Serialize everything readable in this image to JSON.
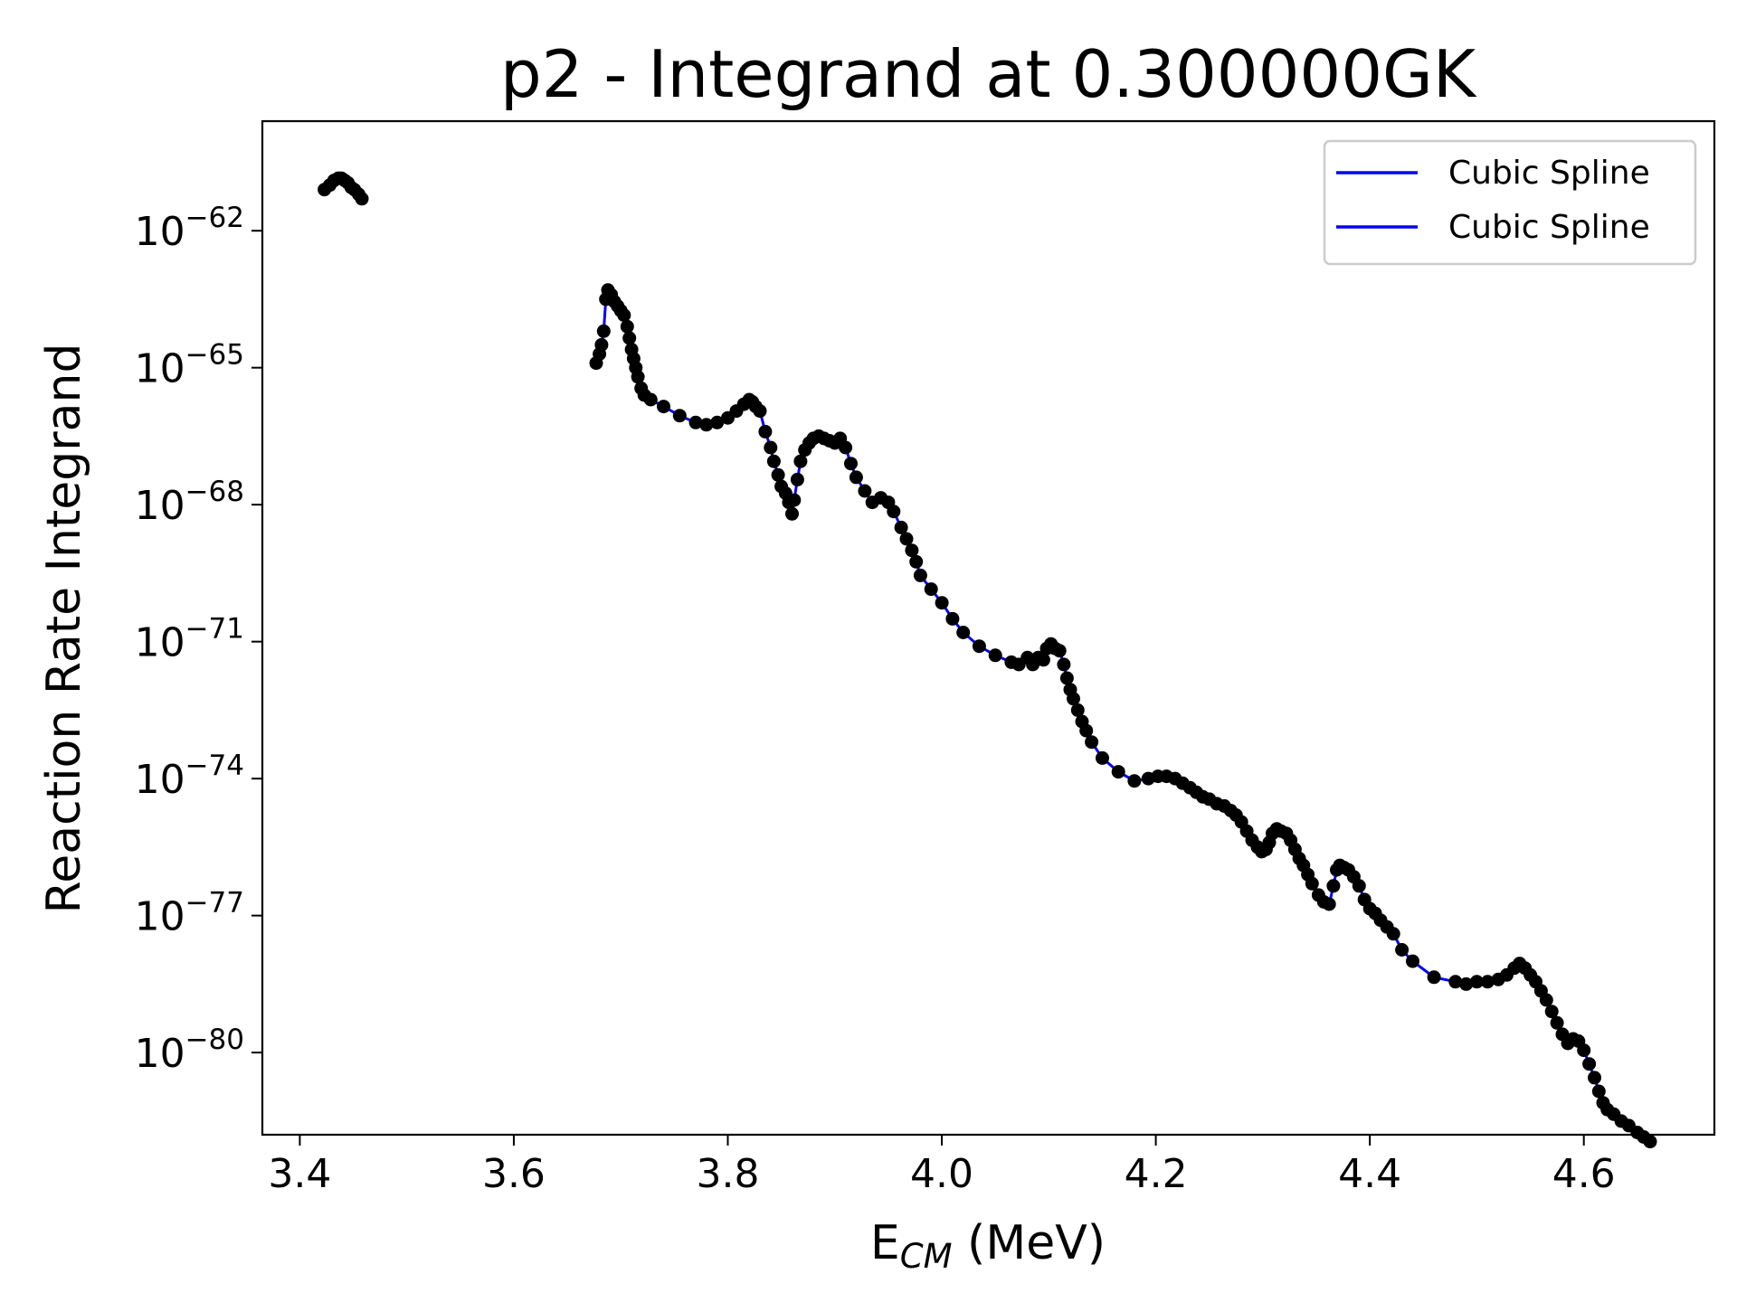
{
  "chart_data": {
    "type": "line",
    "title": "p2 - Integrand at 0.300000GK",
    "xlabel": "E",
    "xlabel_sub": "CM",
    "xlabel_unit": " (MeV)",
    "ylabel": "Reaction Rate Integrand",
    "x_scale": "linear",
    "y_scale": "log",
    "xlim": [
      3.365,
      4.722
    ],
    "ylim_exponent": [
      -81.8,
      -59.6
    ],
    "x_ticks": [
      {
        "value": 3.4,
        "label": "3.4"
      },
      {
        "value": 3.6,
        "label": "3.6"
      },
      {
        "value": 3.8,
        "label": "3.8"
      },
      {
        "value": 4.0,
        "label": "4.0"
      },
      {
        "value": 4.2,
        "label": "4.2"
      },
      {
        "value": 4.4,
        "label": "4.4"
      },
      {
        "value": 4.6,
        "label": "4.6"
      }
    ],
    "y_ticks": [
      {
        "exponent": -62,
        "base": "10",
        "power": "−62"
      },
      {
        "exponent": -65,
        "base": "10",
        "power": "−65"
      },
      {
        "exponent": -68,
        "base": "10",
        "power": "−68"
      },
      {
        "exponent": -71,
        "base": "10",
        "power": "−71"
      },
      {
        "exponent": -74,
        "base": "10",
        "power": "−74"
      },
      {
        "exponent": -77,
        "base": "10",
        "power": "−77"
      },
      {
        "exponent": -80,
        "base": "10",
        "power": "−80"
      }
    ],
    "grid": false,
    "legend_position": "top-right",
    "legend": [
      {
        "label": "Cubic Spline",
        "color": "#0000ff"
      },
      {
        "label": "Cubic Spline",
        "color": "#0000ff"
      }
    ],
    "spline_color": "#0000ff",
    "point_color": "#000000",
    "series": [
      {
        "name": "Cubic Spline",
        "x": [
          3.423,
          3.428,
          3.432,
          3.436,
          3.439,
          3.442,
          3.445,
          3.448,
          3.451,
          3.455,
          3.458
        ],
        "log10_y": [
          -61.1,
          -61.0,
          -60.9,
          -60.85,
          -60.85,
          -60.9,
          -60.95,
          -61.05,
          -61.1,
          -61.2,
          -61.3
        ]
      },
      {
        "name": "Cubic Spline",
        "x": [
          3.677,
          3.68,
          3.682,
          3.684,
          3.686,
          3.688,
          3.691,
          3.694,
          3.697,
          3.7,
          3.703,
          3.706,
          3.708,
          3.71,
          3.712,
          3.714,
          3.716,
          3.719,
          3.722,
          3.728,
          3.74,
          3.755,
          3.77,
          3.78,
          3.79,
          3.8,
          3.808,
          3.815,
          3.82,
          3.823,
          3.826,
          3.83,
          3.835,
          3.84,
          3.843,
          3.847,
          3.85,
          3.854,
          3.857,
          3.86,
          3.862,
          3.865,
          3.868,
          3.872,
          3.876,
          3.88,
          3.885,
          3.89,
          3.895,
          3.9,
          3.905,
          3.91,
          3.915,
          3.92,
          3.928,
          3.935,
          3.943,
          3.95,
          3.955,
          3.962,
          3.967,
          3.972,
          3.976,
          3.98,
          3.99,
          4.0,
          4.01,
          4.02,
          4.035,
          4.05,
          4.065,
          4.072,
          4.08,
          4.085,
          4.09,
          4.095,
          4.098,
          4.102,
          4.106,
          4.11,
          4.114,
          4.117,
          4.12,
          4.123,
          4.127,
          4.131,
          4.135,
          4.14,
          4.15,
          4.165,
          4.18,
          4.193,
          4.202,
          4.21,
          4.218,
          4.225,
          4.232,
          4.238,
          4.244,
          4.25,
          4.257,
          4.264,
          4.27,
          4.275,
          4.28,
          4.285,
          4.29,
          4.295,
          4.299,
          4.303,
          4.306,
          4.309,
          4.313,
          4.317,
          4.322,
          4.326,
          4.33,
          4.334,
          4.338,
          4.342,
          4.346,
          4.352,
          4.357,
          4.362,
          4.366,
          4.369,
          4.372,
          4.376,
          4.38,
          4.385,
          4.39,
          4.395,
          4.4,
          4.405,
          4.41,
          4.416,
          4.422,
          4.43,
          4.44,
          4.46,
          4.48,
          4.49,
          4.5,
          4.51,
          4.52,
          4.528,
          4.535,
          4.54,
          4.545,
          4.55,
          4.555,
          4.56,
          4.565,
          4.57,
          4.575,
          4.58,
          4.585,
          4.59,
          4.595,
          4.6,
          4.605,
          4.61,
          4.614,
          4.618,
          4.622,
          4.628,
          4.635,
          4.642,
          4.65,
          4.656,
          4.662
        ],
        "log10_y": [
          -64.9,
          -64.7,
          -64.5,
          -64.2,
          -63.5,
          -63.3,
          -63.4,
          -63.55,
          -63.65,
          -63.75,
          -63.85,
          -64.1,
          -64.35,
          -64.6,
          -64.8,
          -65.0,
          -65.2,
          -65.45,
          -65.6,
          -65.7,
          -65.85,
          -66.05,
          -66.2,
          -66.25,
          -66.2,
          -66.1,
          -65.95,
          -65.8,
          -65.7,
          -65.75,
          -65.85,
          -65.95,
          -66.4,
          -66.75,
          -67.05,
          -67.35,
          -67.6,
          -67.75,
          -67.95,
          -68.2,
          -67.9,
          -67.45,
          -67.05,
          -66.8,
          -66.65,
          -66.55,
          -66.5,
          -66.55,
          -66.6,
          -66.65,
          -66.55,
          -66.75,
          -67.1,
          -67.4,
          -67.7,
          -67.95,
          -67.85,
          -67.95,
          -68.15,
          -68.5,
          -68.75,
          -69.0,
          -69.25,
          -69.55,
          -69.85,
          -70.15,
          -70.5,
          -70.8,
          -71.1,
          -71.3,
          -71.45,
          -71.5,
          -71.35,
          -71.5,
          -71.35,
          -71.4,
          -71.15,
          -71.05,
          -71.15,
          -71.2,
          -71.5,
          -71.8,
          -72.05,
          -72.25,
          -72.5,
          -72.75,
          -72.95,
          -73.2,
          -73.55,
          -73.85,
          -74.05,
          -74.0,
          -73.95,
          -73.95,
          -74.0,
          -74.1,
          -74.2,
          -74.3,
          -74.4,
          -74.45,
          -74.55,
          -74.6,
          -74.7,
          -74.8,
          -74.95,
          -75.15,
          -75.35,
          -75.5,
          -75.6,
          -75.55,
          -75.4,
          -75.2,
          -75.1,
          -75.15,
          -75.2,
          -75.35,
          -75.55,
          -75.75,
          -75.9,
          -76.1,
          -76.3,
          -76.55,
          -76.7,
          -76.75,
          -76.35,
          -76.0,
          -75.9,
          -75.95,
          -76.0,
          -76.15,
          -76.35,
          -76.65,
          -76.85,
          -76.95,
          -77.1,
          -77.25,
          -77.4,
          -77.75,
          -78.0,
          -78.35,
          -78.45,
          -78.5,
          -78.45,
          -78.45,
          -78.4,
          -78.3,
          -78.15,
          -78.05,
          -78.15,
          -78.3,
          -78.45,
          -78.65,
          -78.85,
          -79.1,
          -79.35,
          -79.6,
          -79.8,
          -79.7,
          -79.75,
          -79.95,
          -80.25,
          -80.55,
          -80.85,
          -81.1,
          -81.25,
          -81.35,
          -81.5,
          -81.6,
          -81.75,
          -81.85,
          -81.95
        ]
      }
    ]
  }
}
